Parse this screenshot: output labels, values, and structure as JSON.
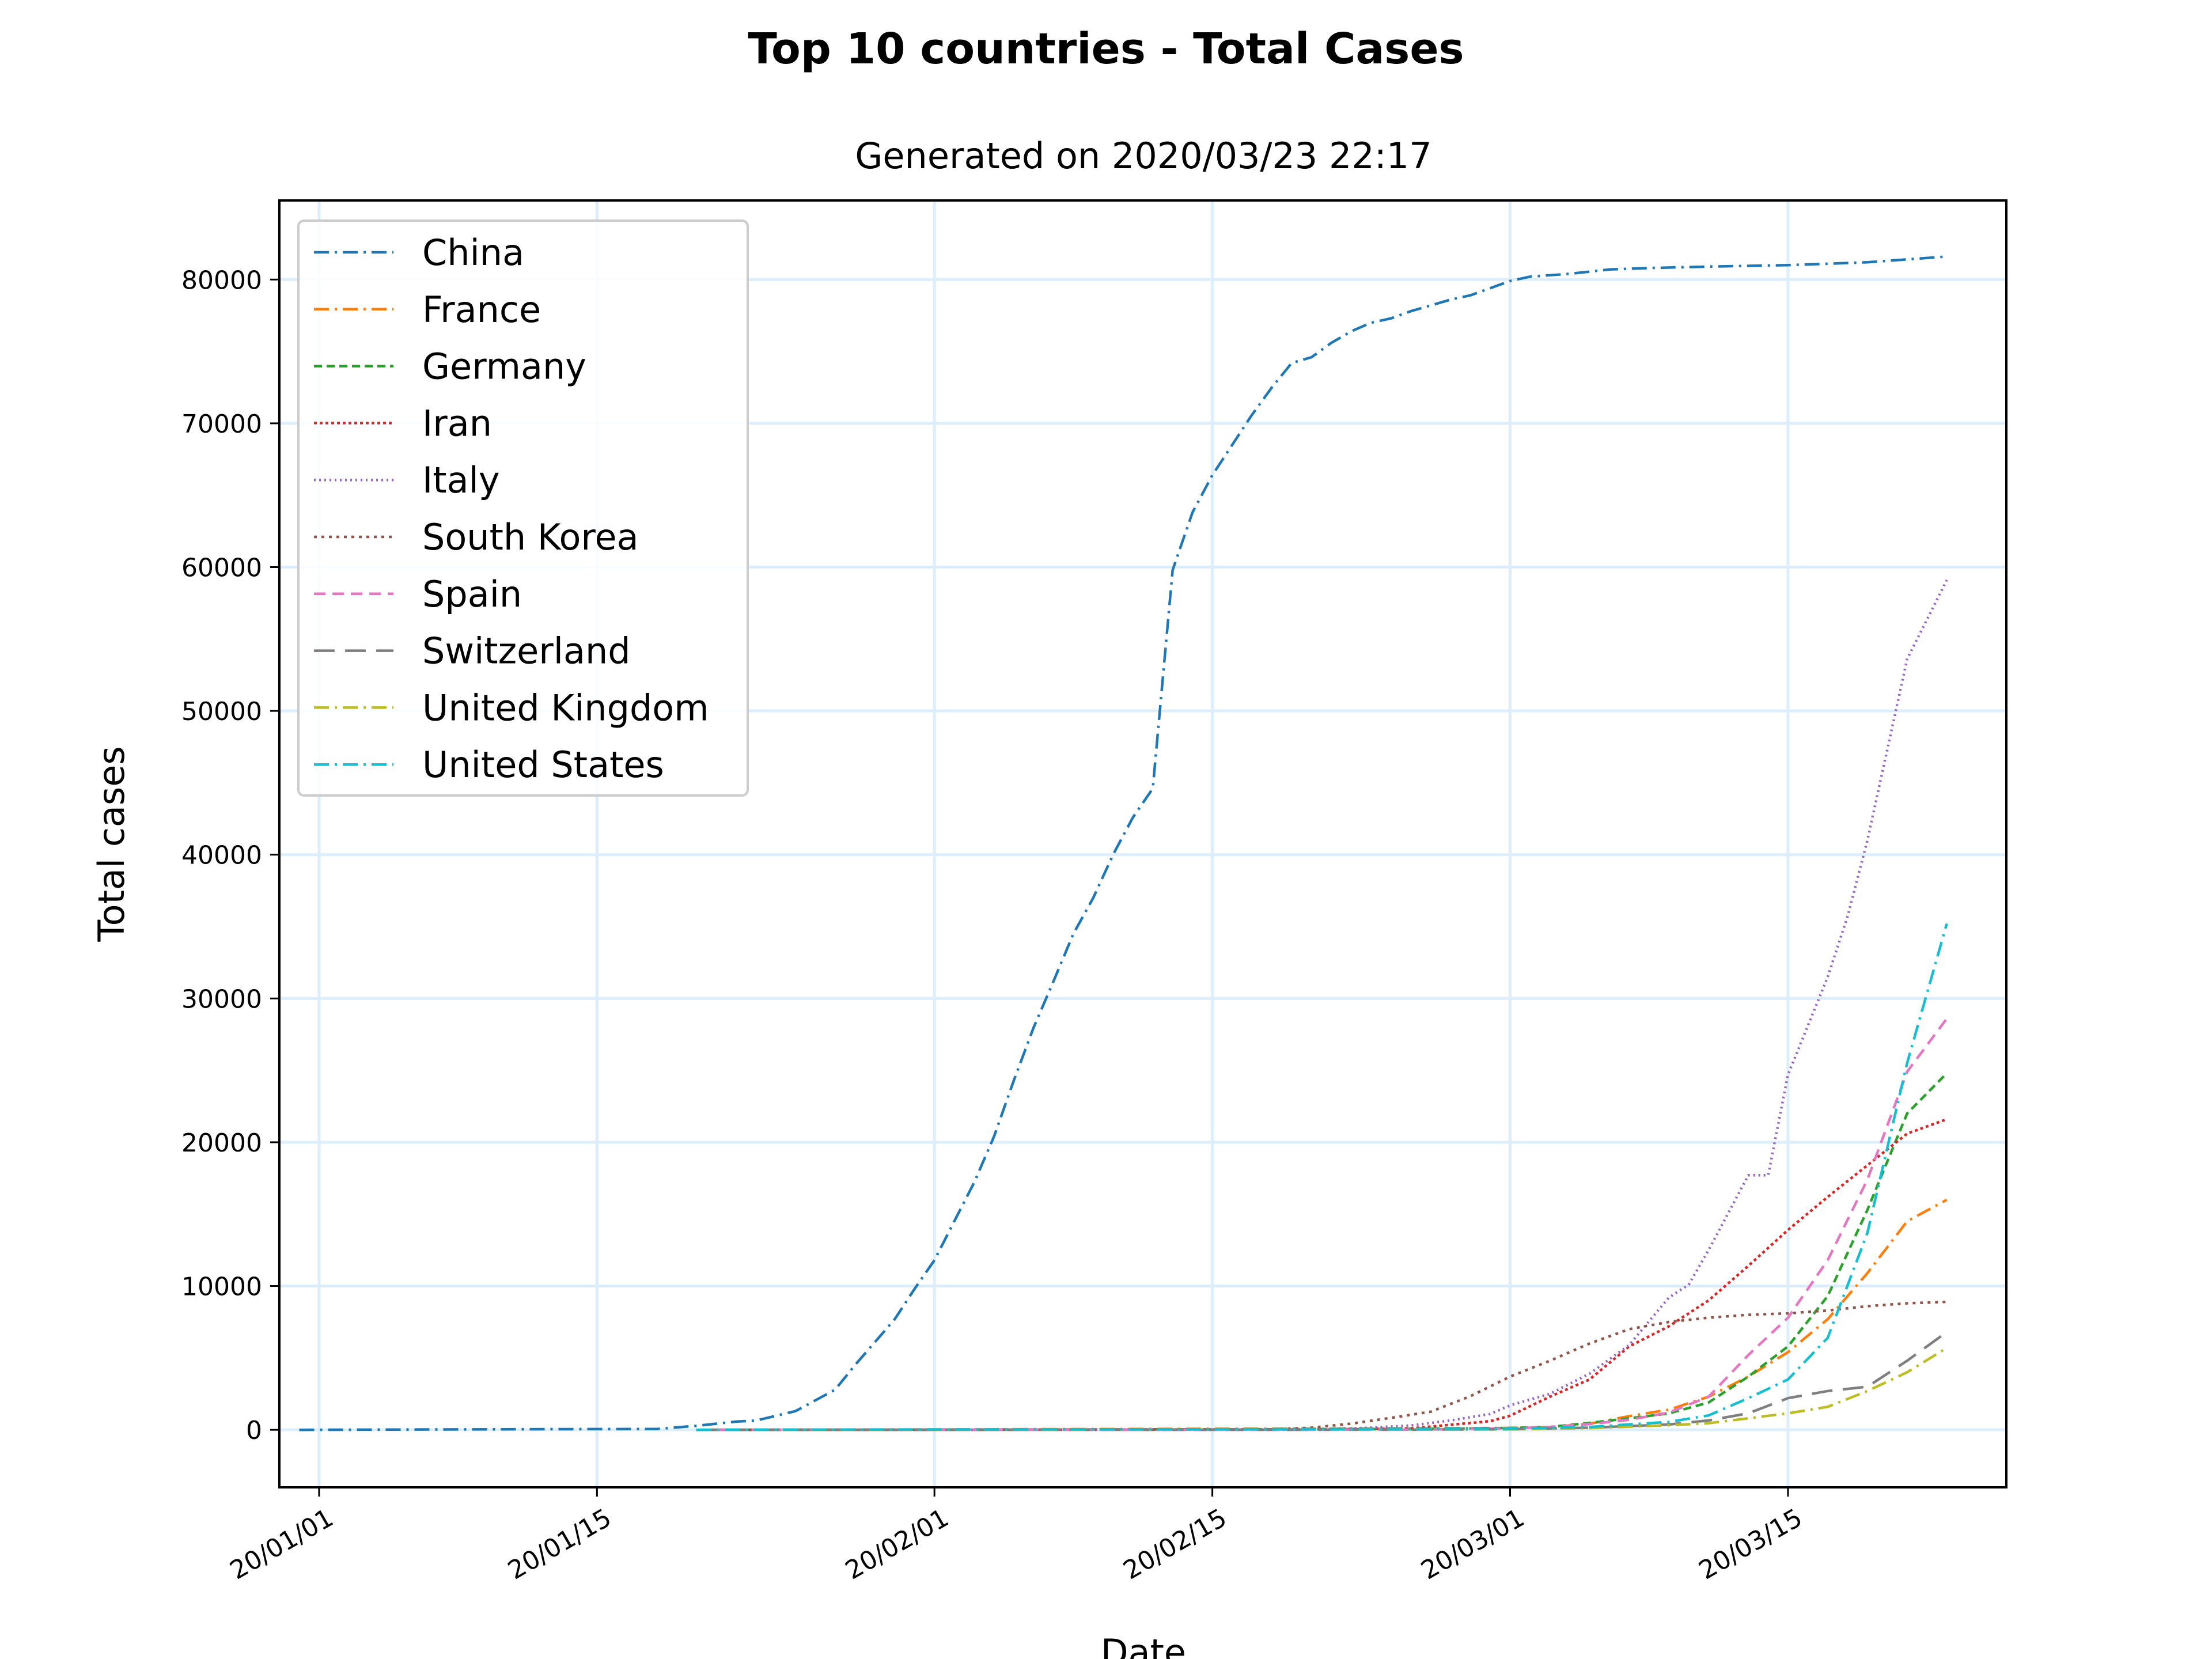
{
  "chart_data": {
    "type": "line",
    "title": "Top 10 countries - Total Cases",
    "subtitle": "Generated on 2020/03/23 22:17",
    "xlabel": "Date",
    "ylabel": "Total cases",
    "xlim": [
      "2019-12-30",
      "2020-03-26"
    ],
    "ylim": [
      -4000,
      85500
    ],
    "grid": true,
    "legend_position": "upper-left",
    "xticks": [
      {
        "date": "2020-01-01",
        "label": "20/01/01"
      },
      {
        "date": "2020-01-15",
        "label": "20/01/15"
      },
      {
        "date": "2020-02-01",
        "label": "20/02/01"
      },
      {
        "date": "2020-02-15",
        "label": "20/02/15"
      },
      {
        "date": "2020-03-01",
        "label": "20/03/01"
      },
      {
        "date": "2020-03-15",
        "label": "20/03/15"
      }
    ],
    "yticks": [
      0,
      10000,
      20000,
      30000,
      40000,
      50000,
      60000,
      70000,
      80000
    ],
    "series": [
      {
        "name": "China",
        "color": "#1f77b4",
        "dash": "26 10 4 10",
        "points": [
          [
            "2019-12-31",
            0
          ],
          [
            "2020-01-10",
            40
          ],
          [
            "2020-01-18",
            60
          ],
          [
            "2020-01-20",
            280
          ],
          [
            "2020-01-22",
            570
          ],
          [
            "2020-01-23",
            640
          ],
          [
            "2020-01-25",
            1300
          ],
          [
            "2020-01-27",
            2800
          ],
          [
            "2020-01-28",
            4500
          ],
          [
            "2020-01-30",
            7700
          ],
          [
            "2020-01-31",
            9800
          ],
          [
            "2020-02-01",
            11800
          ],
          [
            "2020-02-02",
            14500
          ],
          [
            "2020-02-03",
            17200
          ],
          [
            "2020-02-04",
            20400
          ],
          [
            "2020-02-05",
            24300
          ],
          [
            "2020-02-06",
            28000
          ],
          [
            "2020-02-07",
            31200
          ],
          [
            "2020-02-08",
            34500
          ],
          [
            "2020-02-09",
            37000
          ],
          [
            "2020-02-10",
            40000
          ],
          [
            "2020-02-11",
            42600
          ],
          [
            "2020-02-12",
            44600
          ],
          [
            "2020-02-13",
            59800
          ],
          [
            "2020-02-14",
            63800
          ],
          [
            "2020-02-15",
            66400
          ],
          [
            "2020-02-16",
            68500
          ],
          [
            "2020-02-17",
            70600
          ],
          [
            "2020-02-18",
            72500
          ],
          [
            "2020-02-19",
            74200
          ],
          [
            "2020-02-20",
            74600
          ],
          [
            "2020-02-21",
            75600
          ],
          [
            "2020-02-22",
            76400
          ],
          [
            "2020-02-23",
            77000
          ],
          [
            "2020-02-24",
            77300
          ],
          [
            "2020-02-25",
            77800
          ],
          [
            "2020-02-26",
            78200
          ],
          [
            "2020-02-27",
            78600
          ],
          [
            "2020-02-28",
            78900
          ],
          [
            "2020-02-29",
            79400
          ],
          [
            "2020-03-01",
            79900
          ],
          [
            "2020-03-02",
            80200
          ],
          [
            "2020-03-04",
            80400
          ],
          [
            "2020-03-06",
            80700
          ],
          [
            "2020-03-08",
            80800
          ],
          [
            "2020-03-11",
            80900
          ],
          [
            "2020-03-15",
            81000
          ],
          [
            "2020-03-17",
            81100
          ],
          [
            "2020-03-19",
            81200
          ],
          [
            "2020-03-21",
            81400
          ],
          [
            "2020-03-23",
            81600
          ]
        ]
      },
      {
        "name": "France",
        "color": "#ff7f0e",
        "dash": "26 10 4 10",
        "points": [
          [
            "2020-01-20",
            0
          ],
          [
            "2020-02-25",
            100
          ],
          [
            "2020-03-01",
            130
          ],
          [
            "2020-03-03",
            200
          ],
          [
            "2020-03-05",
            420
          ],
          [
            "2020-03-07",
            950
          ],
          [
            "2020-03-09",
            1400
          ],
          [
            "2020-03-11",
            2300
          ],
          [
            "2020-03-13",
            3700
          ],
          [
            "2020-03-15",
            5400
          ],
          [
            "2020-03-17",
            7700
          ],
          [
            "2020-03-19",
            10900
          ],
          [
            "2020-03-21",
            14500
          ],
          [
            "2020-03-23",
            16000
          ]
        ]
      },
      {
        "name": "Germany",
        "color": "#2ca02c",
        "dash": "14 8",
        "points": [
          [
            "2020-01-20",
            0
          ],
          [
            "2020-02-25",
            50
          ],
          [
            "2020-03-01",
            130
          ],
          [
            "2020-03-03",
            200
          ],
          [
            "2020-03-05",
            480
          ],
          [
            "2020-03-07",
            800
          ],
          [
            "2020-03-09",
            1140
          ],
          [
            "2020-03-11",
            1900
          ],
          [
            "2020-03-13",
            3700
          ],
          [
            "2020-03-15",
            5800
          ],
          [
            "2020-03-17",
            9300
          ],
          [
            "2020-03-19",
            15300
          ],
          [
            "2020-03-21",
            22000
          ],
          [
            "2020-03-23",
            24800
          ]
        ]
      },
      {
        "name": "Iran",
        "color": "#d62728",
        "dash": "5 5",
        "points": [
          [
            "2020-01-20",
            0
          ],
          [
            "2020-02-20",
            20
          ],
          [
            "2020-02-25",
            100
          ],
          [
            "2020-02-29",
            600
          ],
          [
            "2020-03-01",
            980
          ],
          [
            "2020-03-03",
            2300
          ],
          [
            "2020-03-05",
            3500
          ],
          [
            "2020-03-07",
            5800
          ],
          [
            "2020-03-09",
            7200
          ],
          [
            "2020-03-11",
            9000
          ],
          [
            "2020-03-13",
            11400
          ],
          [
            "2020-03-15",
            13900
          ],
          [
            "2020-03-17",
            16200
          ],
          [
            "2020-03-19",
            18400
          ],
          [
            "2020-03-21",
            20600
          ],
          [
            "2020-03-23",
            21600
          ]
        ]
      },
      {
        "name": "Italy",
        "color": "#9467bd",
        "dash": "3 6",
        "points": [
          [
            "2020-01-20",
            0
          ],
          [
            "2020-02-20",
            10
          ],
          [
            "2020-02-23",
            150
          ],
          [
            "2020-02-25",
            300
          ],
          [
            "2020-02-27",
            650
          ],
          [
            "2020-02-29",
            1100
          ],
          [
            "2020-03-01",
            1700
          ],
          [
            "2020-03-03",
            2500
          ],
          [
            "2020-03-05",
            3900
          ],
          [
            "2020-03-07",
            5900
          ],
          [
            "2020-03-09",
            9200
          ],
          [
            "2020-03-10",
            10100
          ],
          [
            "2020-03-11",
            12500
          ],
          [
            "2020-03-12",
            15100
          ],
          [
            "2020-03-13",
            17700
          ],
          [
            "2020-03-14",
            17700
          ],
          [
            "2020-03-15",
            24700
          ],
          [
            "2020-03-17",
            31500
          ],
          [
            "2020-03-18",
            35700
          ],
          [
            "2020-03-19",
            41000
          ],
          [
            "2020-03-21",
            53600
          ],
          [
            "2020-03-23",
            59100
          ]
        ]
      },
      {
        "name": "South Korea",
        "color": "#8c564b",
        "dash": "5 8",
        "points": [
          [
            "2020-01-20",
            0
          ],
          [
            "2020-02-18",
            30
          ],
          [
            "2020-02-20",
            150
          ],
          [
            "2020-02-22",
            430
          ],
          [
            "2020-02-24",
            830
          ],
          [
            "2020-02-26",
            1260
          ],
          [
            "2020-02-28",
            2340
          ],
          [
            "2020-03-01",
            3700
          ],
          [
            "2020-03-03",
            4800
          ],
          [
            "2020-03-05",
            6000
          ],
          [
            "2020-03-07",
            7000
          ],
          [
            "2020-03-09",
            7500
          ],
          [
            "2020-03-11",
            7800
          ],
          [
            "2020-03-13",
            8000
          ],
          [
            "2020-03-15",
            8100
          ],
          [
            "2020-03-17",
            8300
          ],
          [
            "2020-03-19",
            8600
          ],
          [
            "2020-03-21",
            8800
          ],
          [
            "2020-03-23",
            8900
          ]
        ]
      },
      {
        "name": "Spain",
        "color": "#e377c2",
        "dash": "20 12",
        "points": [
          [
            "2020-01-20",
            0
          ],
          [
            "2020-02-25",
            10
          ],
          [
            "2020-03-01",
            100
          ],
          [
            "2020-03-03",
            200
          ],
          [
            "2020-03-05",
            400
          ],
          [
            "2020-03-07",
            700
          ],
          [
            "2020-03-09",
            1200
          ],
          [
            "2020-03-11",
            2300
          ],
          [
            "2020-03-13",
            5200
          ],
          [
            "2020-03-15",
            7800
          ],
          [
            "2020-03-17",
            11800
          ],
          [
            "2020-03-19",
            17400
          ],
          [
            "2020-03-21",
            24900
          ],
          [
            "2020-03-23",
            28600
          ]
        ]
      },
      {
        "name": "Switzerland",
        "color": "#7f7f7f",
        "dash": "36 18",
        "points": [
          [
            "2020-01-20",
            0
          ],
          [
            "2020-02-25",
            10
          ],
          [
            "2020-03-01",
            40
          ],
          [
            "2020-03-05",
            150
          ],
          [
            "2020-03-09",
            370
          ],
          [
            "2020-03-11",
            650
          ],
          [
            "2020-03-13",
            1150
          ],
          [
            "2020-03-15",
            2200
          ],
          [
            "2020-03-17",
            2700
          ],
          [
            "2020-03-19",
            3000
          ],
          [
            "2020-03-21",
            4800
          ],
          [
            "2020-03-23",
            6800
          ]
        ]
      },
      {
        "name": "United Kingdom",
        "color": "#bcbd22",
        "dash": "26 10 4 10",
        "points": [
          [
            "2020-01-20",
            0
          ],
          [
            "2020-03-01",
            30
          ],
          [
            "2020-03-05",
            120
          ],
          [
            "2020-03-09",
            320
          ],
          [
            "2020-03-11",
            460
          ],
          [
            "2020-03-13",
            800
          ],
          [
            "2020-03-15",
            1150
          ],
          [
            "2020-03-17",
            1600
          ],
          [
            "2020-03-19",
            2700
          ],
          [
            "2020-03-21",
            4000
          ],
          [
            "2020-03-23",
            5700
          ]
        ]
      },
      {
        "name": "United States",
        "color": "#17becf",
        "dash": "26 10 4 10",
        "points": [
          [
            "2020-01-20",
            0
          ],
          [
            "2020-03-01",
            70
          ],
          [
            "2020-03-05",
            200
          ],
          [
            "2020-03-09",
            550
          ],
          [
            "2020-03-11",
            1000
          ],
          [
            "2020-03-13",
            2200
          ],
          [
            "2020-03-15",
            3500
          ],
          [
            "2020-03-17",
            6400
          ],
          [
            "2020-03-19",
            13700
          ],
          [
            "2020-03-21",
            25500
          ],
          [
            "2020-03-23",
            35200
          ]
        ]
      }
    ]
  }
}
